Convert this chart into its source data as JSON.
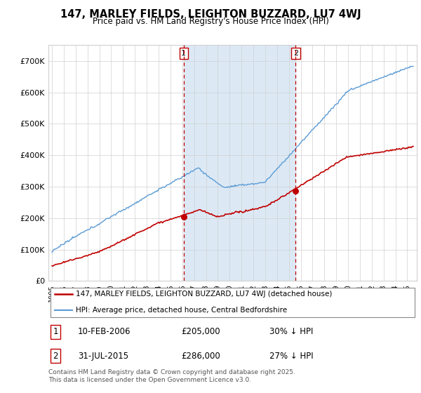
{
  "title_line1": "147, MARLEY FIELDS, LEIGHTON BUZZARD, LU7 4WJ",
  "title_line2": "Price paid vs. HM Land Registry's House Price Index (HPI)",
  "ylim": [
    0,
    750000
  ],
  "yticks": [
    0,
    100000,
    200000,
    300000,
    400000,
    500000,
    600000,
    700000
  ],
  "ytick_labels": [
    "£0",
    "£100K",
    "£200K",
    "£300K",
    "£400K",
    "£500K",
    "£600K",
    "£700K"
  ],
  "hpi_color": "#5b9bd5",
  "price_color": "#c00000",
  "vline_color": "#c00000",
  "grid_color": "#d0d0d0",
  "shade_color": "#dce9f5",
  "background_color": "#ffffff",
  "sale1_x": 2006.12,
  "sale1_price": 205000,
  "sale2_x": 2015.58,
  "sale2_price": 286000,
  "legend_line1": "147, MARLEY FIELDS, LEIGHTON BUZZARD, LU7 4WJ (detached house)",
  "legend_line2": "HPI: Average price, detached house, Central Bedfordshire",
  "footnote": "Contains HM Land Registry data © Crown copyright and database right 2025.\nThis data is licensed under the Open Government Licence v3.0.",
  "table_row1": [
    "1",
    "10-FEB-2006",
    "£205,000",
    "30% ↓ HPI"
  ],
  "table_row2": [
    "2",
    "31-JUL-2015",
    "£286,000",
    "27% ↓ HPI"
  ]
}
